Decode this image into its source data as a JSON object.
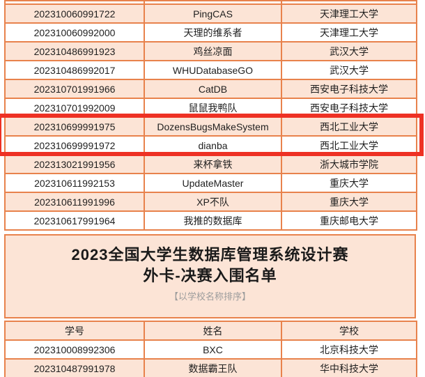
{
  "colors": {
    "table_border": "#e8824c",
    "shaded_row_bg": "#fce4d6",
    "highlight_box": "#ee3124",
    "text": "#1f1f1f",
    "subtitle_text": "#9c9c9c"
  },
  "table1": {
    "rows": [
      {
        "id": "202310060991722",
        "name": "PingCAS",
        "school": "天津理工大学",
        "shaded": true
      },
      {
        "id": "202310060992000",
        "name": "天理的维系者",
        "school": "天津理工大学",
        "shaded": false
      },
      {
        "id": "202310486991923",
        "name": "鸡丝凉面",
        "school": "武汉大学",
        "shaded": true
      },
      {
        "id": "202310486992017",
        "name": "WHUDatabaseGO",
        "school": "武汉大学",
        "shaded": false
      },
      {
        "id": "202310701991966",
        "name": "CatDB",
        "school": "西安电子科技大学",
        "shaded": true
      },
      {
        "id": "202310701992009",
        "name": "鼠鼠我鸭队",
        "school": "西安电子科技大学",
        "shaded": false
      },
      {
        "id": "202310699991975",
        "name": "DozensBugsMakeSystem",
        "school": "西北工业大学",
        "shaded": true,
        "highlighted": true
      },
      {
        "id": "202310699991972",
        "name": "dianba",
        "school": "西北工业大学",
        "shaded": false,
        "highlighted": true
      },
      {
        "id": "202313021991956",
        "name": "来杯拿铁",
        "school": "浙大城市学院",
        "shaded": true
      },
      {
        "id": "202310611992153",
        "name": "UpdateMaster",
        "school": "重庆大学",
        "shaded": false
      },
      {
        "id": "202310611991996",
        "name": "XP不队",
        "school": "重庆大学",
        "shaded": true
      },
      {
        "id": "202310617991964",
        "name": "我推的数据库",
        "school": "重庆邮电大学",
        "shaded": false
      }
    ]
  },
  "section": {
    "title_line1": "2023全国大学生数据库管理系统设计赛",
    "title_line2": "外卡-决赛入围名单",
    "subtitle": "【以学校名称排序】"
  },
  "table2": {
    "headers": [
      "学号",
      "姓名",
      "学校"
    ],
    "rows": [
      {
        "id": "202310008992306",
        "name": "BXC",
        "school": "北京科技大学",
        "shaded": false
      },
      {
        "id": "202310487991978",
        "name": "数据霸王队",
        "school": "华中科技大学",
        "shaded": true
      }
    ]
  }
}
